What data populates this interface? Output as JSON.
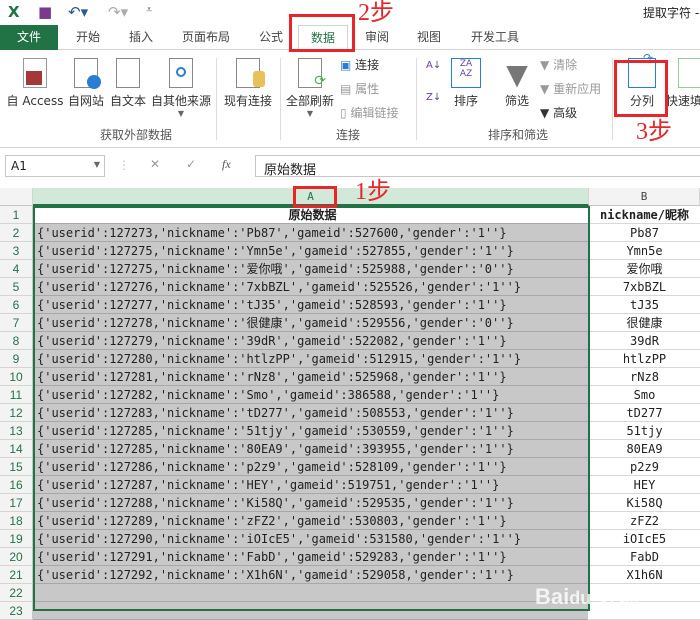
{
  "title_bar": {
    "doc_title": "提取字符 -",
    "icons": [
      "excel-icon",
      "save-icon",
      "undo-icon",
      "redo-icon",
      "customize-icon"
    ]
  },
  "tabs": [
    "文件",
    "开始",
    "插入",
    "页面布局",
    "公式",
    "数据",
    "审阅",
    "视图",
    "开发工具"
  ],
  "active_tab": "数据",
  "ribbon": {
    "get_external": {
      "label": "获取外部数据",
      "buttons": [
        "自 Access",
        "自网站",
        "自文本",
        "自其他来源",
        "现有连接"
      ]
    },
    "connections": {
      "label": "连接",
      "refresh": "全部刷新",
      "items": [
        "连接",
        "属性",
        "编辑链接"
      ]
    },
    "sort_filter": {
      "label": "排序和筛选",
      "sort": "排序",
      "filter": "筛选",
      "items": [
        "清除",
        "重新应用",
        "高级"
      ]
    },
    "tools": {
      "text_to_columns": "分列",
      "flash_fill": "快速填"
    }
  },
  "formula_bar": {
    "name_box": "A1",
    "formula": "原始数据",
    "fx": "fx"
  },
  "annotations": {
    "step1": "1步",
    "step2": "2步",
    "step3": "3步",
    "color": "#e8262a"
  },
  "watermark": "Baidu 经验 jingyan.baidu.com",
  "sheet": {
    "columns": [
      "A",
      "B"
    ],
    "header_a": "原始数据",
    "header_b": "nickname/昵称",
    "rows": [
      [
        "{'userid':127273,'nickname':'Pb87','gameid':527600,'gender':'1''}",
        "Pb87"
      ],
      [
        "{'userid':127275,'nickname':'Ymn5e','gameid':527855,'gender':'1''}",
        "Ymn5e"
      ],
      [
        "{'userid':127275,'nickname':'爱你哦','gameid':525988,'gender':'0''}",
        "爱你哦"
      ],
      [
        "{'userid':127276,'nickname':'7xbBZL','gameid':525526,'gender':'1''}",
        "7xbBZL"
      ],
      [
        "{'userid':127277,'nickname':'tJ35','gameid':528593,'gender':'1''}",
        "tJ35"
      ],
      [
        "{'userid':127278,'nickname':'很健康','gameid':529556,'gender':'0''}",
        "很健康"
      ],
      [
        "{'userid':127279,'nickname':'39dR','gameid':522082,'gender':'1''}",
        "39dR"
      ],
      [
        "{'userid':127280,'nickname':'htlzPP','gameid':512915,'gender':'1''}",
        "htlzPP"
      ],
      [
        "{'userid':127281,'nickname':'rNz8','gameid':525968,'gender':'1''}",
        "rNz8"
      ],
      [
        "{'userid':127282,'nickname':'Smo','gameid':386588,'gender':'1''}",
        "Smo"
      ],
      [
        "{'userid':127283,'nickname':'tD277','gameid':508553,'gender':'1''}",
        "tD277"
      ],
      [
        "{'userid':127285,'nickname':'51tjy','gameid':530559,'gender':'1''}",
        "51tjy"
      ],
      [
        "{'userid':127285,'nickname':'80EA9','gameid':393955,'gender':'1''}",
        "80EA9"
      ],
      [
        "{'userid':127286,'nickname':'p2z9','gameid':528109,'gender':'1''}",
        "p2z9"
      ],
      [
        "{'userid':127287,'nickname':'HEY','gameid':519751,'gender':'1''}",
        "HEY"
      ],
      [
        "{'userid':127288,'nickname':'Ki58Q','gameid':529535,'gender':'1''}",
        "Ki58Q"
      ],
      [
        "{'userid':127289,'nickname':'zFZ2','gameid':530803,'gender':'1''}",
        "zFZ2"
      ],
      [
        "{'userid':127290,'nickname':'iOIcE5','gameid':531580,'gender':'1''}",
        "iOIcE5"
      ],
      [
        "{'userid':127291,'nickname':'FabD','gameid':529283,'gender':'1''}",
        "FabD"
      ],
      [
        "{'userid':127292,'nickname':'X1h6N','gameid':529058,'gender':'1''}",
        "X1h6N"
      ]
    ]
  }
}
